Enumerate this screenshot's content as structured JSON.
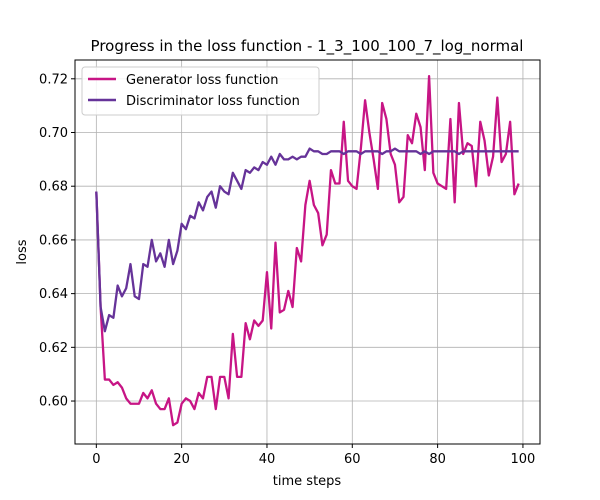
{
  "chart_data": {
    "type": "line",
    "title": "Progress in the loss function - 1_3_100_100_7_log_normal",
    "xlabel": "time steps",
    "ylabel": "loss",
    "xlim": [
      -5,
      104
    ],
    "ylim": [
      0.584,
      0.727
    ],
    "xticks": [
      "0",
      "20",
      "40",
      "60",
      "80",
      "100"
    ],
    "yticks": [
      "0.60",
      "0.62",
      "0.64",
      "0.66",
      "0.68",
      "0.70",
      "0.72"
    ],
    "grid": true,
    "legend_position": "upper-left",
    "x": [
      0,
      1,
      2,
      3,
      4,
      5,
      6,
      7,
      8,
      9,
      10,
      11,
      12,
      13,
      14,
      15,
      16,
      17,
      18,
      19,
      20,
      21,
      22,
      23,
      24,
      25,
      26,
      27,
      28,
      29,
      30,
      31,
      32,
      33,
      34,
      35,
      36,
      37,
      38,
      39,
      40,
      41,
      42,
      43,
      44,
      45,
      46,
      47,
      48,
      49,
      50,
      51,
      52,
      53,
      54,
      55,
      56,
      57,
      58,
      59,
      60,
      61,
      62,
      63,
      64,
      65,
      66,
      67,
      68,
      69,
      70,
      71,
      72,
      73,
      74,
      75,
      76,
      77,
      78,
      79,
      80,
      81,
      82,
      83,
      84,
      85,
      86,
      87,
      88,
      89,
      90,
      91,
      92,
      93,
      94,
      95,
      96,
      97,
      98,
      99
    ],
    "series": [
      {
        "name": "Generator loss function",
        "color": "#c71585",
        "values": [
          0.678,
          0.635,
          0.608,
          0.608,
          0.606,
          0.607,
          0.605,
          0.601,
          0.599,
          0.599,
          0.599,
          0.603,
          0.601,
          0.604,
          0.599,
          0.597,
          0.597,
          0.601,
          0.591,
          0.592,
          0.599,
          0.601,
          0.6,
          0.597,
          0.603,
          0.601,
          0.609,
          0.609,
          0.597,
          0.609,
          0.609,
          0.601,
          0.625,
          0.609,
          0.609,
          0.629,
          0.623,
          0.63,
          0.628,
          0.63,
          0.648,
          0.627,
          0.659,
          0.633,
          0.634,
          0.641,
          0.635,
          0.657,
          0.652,
          0.673,
          0.682,
          0.673,
          0.67,
          0.658,
          0.662,
          0.686,
          0.681,
          0.681,
          0.704,
          0.682,
          0.68,
          0.679,
          0.694,
          0.712,
          0.7,
          0.69,
          0.679,
          0.711,
          0.705,
          0.692,
          0.688,
          0.674,
          0.676,
          0.699,
          0.696,
          0.707,
          0.702,
          0.686,
          0.721,
          0.685,
          0.681,
          0.68,
          0.679,
          0.705,
          0.674,
          0.711,
          0.692,
          0.696,
          0.695,
          0.68,
          0.704,
          0.697,
          0.684,
          0.691,
          0.713,
          0.689,
          0.692,
          0.704,
          0.677,
          0.681
        ]
      },
      {
        "name": "Discriminator loss function",
        "color": "#663399",
        "values": [
          0.678,
          0.635,
          0.626,
          0.632,
          0.631,
          0.643,
          0.639,
          0.642,
          0.651,
          0.639,
          0.638,
          0.651,
          0.65,
          0.66,
          0.652,
          0.655,
          0.65,
          0.66,
          0.651,
          0.656,
          0.666,
          0.664,
          0.669,
          0.668,
          0.674,
          0.671,
          0.676,
          0.678,
          0.672,
          0.68,
          0.678,
          0.677,
          0.685,
          0.682,
          0.679,
          0.686,
          0.685,
          0.687,
          0.686,
          0.689,
          0.688,
          0.691,
          0.688,
          0.692,
          0.69,
          0.69,
          0.691,
          0.69,
          0.691,
          0.691,
          0.694,
          0.693,
          0.693,
          0.692,
          0.692,
          0.693,
          0.693,
          0.693,
          0.692,
          0.693,
          0.693,
          0.693,
          0.692,
          0.693,
          0.693,
          0.693,
          0.693,
          0.692,
          0.693,
          0.693,
          0.694,
          0.693,
          0.693,
          0.693,
          0.693,
          0.693,
          0.692,
          0.693,
          0.692,
          0.693,
          0.693,
          0.693,
          0.693,
          0.693,
          0.693,
          0.692,
          0.693,
          0.693,
          0.693,
          0.693,
          0.693,
          0.693,
          0.693,
          0.693,
          0.693,
          0.693,
          0.693,
          0.693,
          0.693,
          0.693
        ]
      }
    ]
  }
}
